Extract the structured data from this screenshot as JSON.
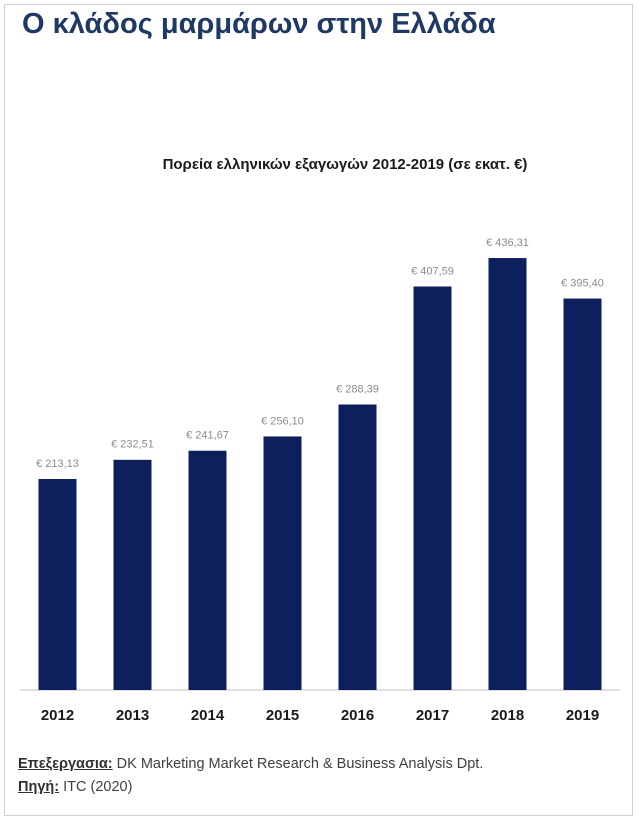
{
  "title": "Ο κλάδος μαρμάρων στην Ελλάδα",
  "chart_data": {
    "type": "bar",
    "title": "Πορεία ελληνικών εξαγωγών 2012-2019 (σε εκατ. €)",
    "categories": [
      "2012",
      "2013",
      "2014",
      "2015",
      "2016",
      "2017",
      "2018",
      "2019"
    ],
    "values": [
      213.13,
      232.51,
      241.67,
      256.1,
      288.39,
      407.59,
      436.31,
      395.4
    ],
    "value_labels": [
      "€ 213,13",
      "€ 232,51",
      "€ 241,67",
      "€ 256,10",
      "€ 288,39",
      "€ 407,59",
      "€ 436,31",
      "€ 395,40"
    ],
    "color": "#0d1f5c"
  },
  "footer": {
    "processing_label": "Επεξεργασια:",
    "processing": "DK Marketing Market Research & Business Analysis Dpt.",
    "source_label": "Πηγή:",
    "source": "ITC (2020)"
  }
}
